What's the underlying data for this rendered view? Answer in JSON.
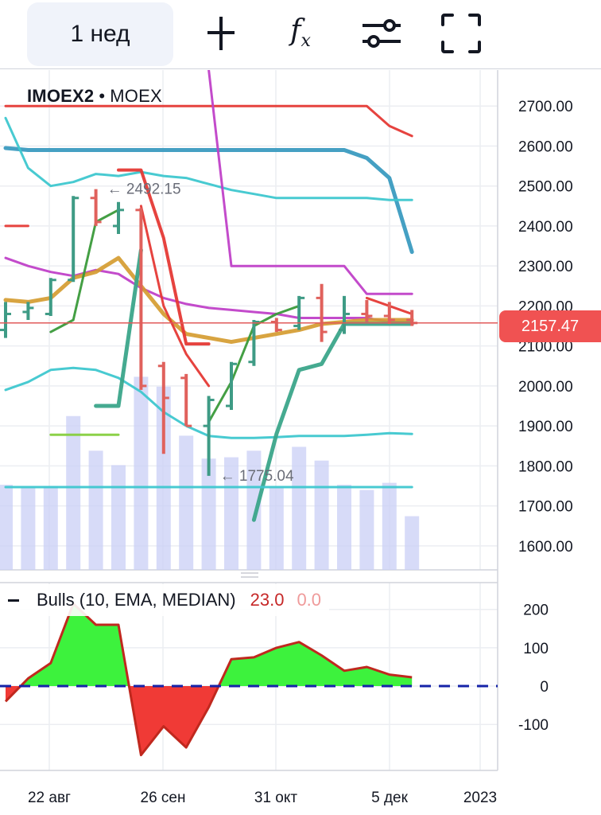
{
  "toolbar": {
    "interval": "1 нед",
    "icons": [
      "crosshair-icon",
      "indicators-fx-icon",
      "settings-sliders-icon",
      "fullscreen-icon"
    ],
    "fx_label": "f",
    "fx_sub": "x"
  },
  "symbol": {
    "ticker": "IMOEX2",
    "separator": "•",
    "exchange": "MOEX"
  },
  "last_price": "2157.47",
  "chart_data": [
    {
      "type": "line",
      "title": "",
      "ticker": "IMOEX2",
      "exchange": "MOEX",
      "x_tick_labels": [
        "22 авг",
        "26 сен",
        "31 окт",
        "5 дек",
        "2023"
      ],
      "y_tick_labels": [
        "2700.00",
        "2600.00",
        "2500.00",
        "2400.00",
        "2300.00",
        "2200.00",
        "2100.00",
        "2000.00",
        "1900.00",
        "1800.00",
        "1700.00",
        "1600.00"
      ],
      "ylim": [
        1540,
        2790
      ],
      "last_price": 2157.47,
      "annotations": [
        {
          "label": "2492.15",
          "x_index": 4,
          "y": 2492.15
        },
        {
          "label": "1775.04",
          "x_index": 9,
          "y": 1775.04
        }
      ],
      "ohlc": [
        {
          "i": 0,
          "o": 2140,
          "h": 2210,
          "l": 2120,
          "c": 2180
        },
        {
          "i": 1,
          "o": 2185,
          "h": 2210,
          "l": 2165,
          "c": 2195
        },
        {
          "i": 2,
          "o": 2180,
          "h": 2270,
          "l": 2175,
          "c": 2265
        },
        {
          "i": 3,
          "o": 2265,
          "h": 2475,
          "l": 2260,
          "c": 2470
        },
        {
          "i": 4,
          "o": 2470,
          "h": 2492.15,
          "l": 2400,
          "c": 2410
        },
        {
          "i": 5,
          "o": 2400,
          "h": 2460,
          "l": 2380,
          "c": 2440
        },
        {
          "i": 6,
          "o": 2440,
          "h": 2445,
          "l": 1990,
          "c": 2000
        },
        {
          "i": 7,
          "o": 2050,
          "h": 2060,
          "l": 1830,
          "c": 1970
        },
        {
          "i": 8,
          "o": 2020,
          "h": 2030,
          "l": 1900,
          "c": 1900
        },
        {
          "i": 9,
          "o": 1900,
          "h": 1975,
          "l": 1775.04,
          "c": 1965
        },
        {
          "i": 10,
          "o": 1950,
          "h": 2060,
          "l": 1940,
          "c": 2055
        },
        {
          "i": 11,
          "o": 2060,
          "h": 2165,
          "l": 2050,
          "c": 2160
        },
        {
          "i": 12,
          "o": 2160,
          "h": 2170,
          "l": 2135,
          "c": 2140
        },
        {
          "i": 13,
          "o": 2150,
          "h": 2225,
          "l": 2140,
          "c": 2220
        },
        {
          "i": 14,
          "o": 2220,
          "h": 2255,
          "l": 2110,
          "c": 2135
        },
        {
          "i": 15,
          "o": 2140,
          "h": 2225,
          "l": 2130,
          "c": 2180
        },
        {
          "i": 16,
          "o": 2180,
          "h": 2215,
          "l": 2160,
          "c": 2175
        },
        {
          "i": 17,
          "o": 2175,
          "h": 2210,
          "l": 2155,
          "c": 2165
        },
        {
          "i": 18,
          "o": 2165,
          "h": 2190,
          "l": 2150,
          "c": 2157.47
        }
      ],
      "volume": [
        130,
        125,
        128,
        235,
        182,
        160,
        295,
        280,
        205,
        170,
        172,
        182,
        125,
        188,
        167,
        130,
        122,
        133,
        82
      ],
      "overlays": [
        {
          "name": "",
          "color": "#e53935",
          "values": [
            2700,
            2700,
            2700,
            2700,
            2700,
            2700,
            2700,
            2700,
            2700,
            2700,
            2700,
            2700,
            2700,
            2700,
            2700,
            2700,
            2700,
            2650,
            2625
          ],
          "extra": {
            "x_end": 18,
            "y_end": 2625
          }
        },
        {
          "name": "",
          "color": "#3b9bc0",
          "values": [
            2595,
            2590,
            2590,
            2590,
            2590,
            2590,
            2590,
            2590,
            2590,
            2590,
            2590,
            2590,
            2590,
            2590,
            2590,
            2590,
            2570,
            2520,
            2335
          ]
        },
        {
          "name": "",
          "color": "#3ec7cf",
          "values": [
            2670,
            2545,
            2500,
            2510,
            2530,
            2525,
            2535,
            2525,
            2520,
            2505,
            2490,
            2480,
            2470,
            2470,
            2470,
            2470,
            2470,
            2465,
            2465
          ]
        },
        {
          "name": "",
          "color": "#c041c8",
          "values": [
            2320,
            2300,
            2285,
            2275,
            2290,
            2280,
            2245,
            2220,
            2205,
            2195,
            2190,
            2185,
            2180,
            2170,
            2170,
            2170,
            2170,
            2160,
            2160
          ]
        },
        {
          "name": "",
          "color": "#c041c8",
          "values": [
            null,
            null,
            null,
            null,
            null,
            null,
            null,
            null,
            null,
            2790,
            2300,
            2300,
            2300,
            2300,
            2300,
            2300,
            2230,
            2230,
            2230
          ]
        },
        {
          "name": "",
          "color": "#3ec7cf",
          "values": [
            1990,
            2010,
            2040,
            2045,
            2040,
            2020,
            1985,
            1935,
            1900,
            1875,
            1870,
            1870,
            1872,
            1875,
            1875,
            1875,
            1878,
            1882,
            1880
          ]
        },
        {
          "name": "",
          "color": "#d49a2c",
          "values": [
            2215,
            2210,
            2220,
            2270,
            2285,
            2320,
            2250,
            2180,
            2130,
            2120,
            2110,
            2120,
            2130,
            2140,
            2155,
            2160,
            2165,
            2165,
            2165
          ]
        },
        {
          "name": "",
          "color": "#e53935",
          "values": [
            null,
            null,
            null,
            null,
            null,
            2540,
            2540,
            2370,
            2105,
            2105,
            null,
            null,
            null,
            null,
            null,
            null,
            null,
            null,
            null
          ]
        },
        {
          "name": "",
          "color": "#e53935",
          "values": [
            null,
            null,
            null,
            null,
            null,
            null,
            2450,
            2200,
            2080,
            2000,
            null,
            null,
            null,
            null,
            null,
            null,
            2220,
            2200,
            2180
          ]
        },
        {
          "name": "",
          "color": "#3ba58a",
          "values": [
            null,
            null,
            null,
            null,
            1950,
            1950,
            2340,
            null,
            null,
            null,
            null,
            1665,
            1880,
            2040,
            2055,
            2155,
            2155,
            2155,
            2155
          ]
        },
        {
          "name": "",
          "color": "#3a9a3a",
          "values": [
            null,
            null,
            2135,
            2165,
            2410,
            2440,
            null,
            null,
            null,
            1910,
            2010,
            2150,
            2180,
            2200,
            null,
            null,
            null,
            null,
            null
          ]
        },
        {
          "name": "",
          "color": "#e53935",
          "values": [
            2400,
            2400,
            null,
            null,
            null,
            null,
            null,
            null,
            null,
            null,
            null,
            null,
            null,
            null,
            null,
            null,
            null,
            null,
            null
          ]
        },
        {
          "name": "",
          "color": "#86cf3e",
          "values": [
            null,
            null,
            1878,
            1878,
            1878,
            1878,
            null,
            null,
            null,
            null,
            null,
            null,
            null,
            null,
            null,
            null,
            null,
            null,
            null
          ]
        },
        {
          "name": "",
          "color": "#3ec7cf",
          "values": [
            1747,
            1747,
            1747,
            1747,
            1747,
            1747,
            1747,
            1747,
            1747,
            1747,
            1747,
            1747,
            1747,
            1747,
            1747,
            1747,
            1747,
            1747,
            1747
          ]
        }
      ]
    },
    {
      "type": "area",
      "title": "Bulls (10, EMA, MEDIAN)",
      "legend_values": [
        "23.0",
        "0.0"
      ],
      "y_tick_labels": [
        "200",
        "100",
        "0",
        "-100"
      ],
      "ylim": [
        -220,
        270
      ],
      "values": [
        -40,
        20,
        60,
        215,
        160,
        160,
        -180,
        -105,
        -160,
        -55,
        70,
        75,
        100,
        115,
        80,
        40,
        50,
        30,
        23
      ],
      "colors": {
        "positive": "#3df23d",
        "negative": "#f03a36",
        "outline": "#c0281e",
        "zero_line": "#1523a8"
      }
    }
  ]
}
